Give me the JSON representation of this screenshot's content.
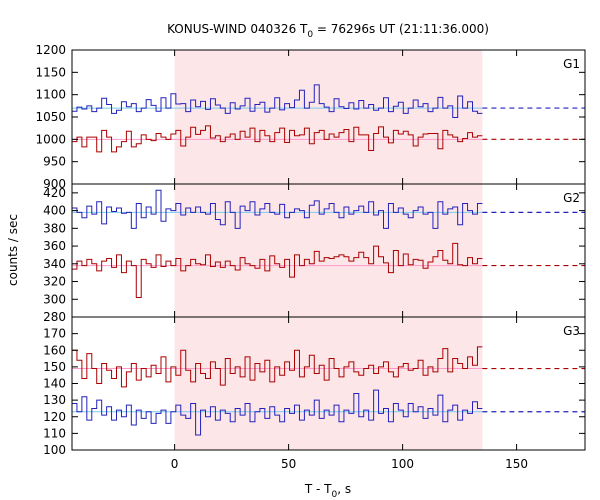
{
  "chart_data": {
    "type": "line",
    "title_pre": "KONUS-WIND 040326 T",
    "title_sub": "0",
    "title_post": " = 76296s UT (21:11:36.000)",
    "xlabel_pre": "T - T",
    "xlabel_sub": "0",
    "xlabel_post": ", s",
    "ylabel": "counts / sec",
    "xlim": [
      -45,
      180
    ],
    "x_ticks": [
      0,
      50,
      100,
      150
    ],
    "x_tick_labels": [
      "0",
      "50",
      "100",
      "150"
    ],
    "shaded_interval": [
      0,
      135
    ],
    "line_interval": [
      -45,
      135
    ],
    "dashed_interval": [
      135,
      180
    ],
    "colors": {
      "blue": "#2222bb",
      "red": "#aa0000",
      "blue_bg": "#77ccee",
      "red_bg": "#ff99cc",
      "shade": "#fde6e8"
    },
    "panels": [
      {
        "label": "G1",
        "ylim": [
          900,
          1200
        ],
        "y_ticks": [
          900,
          950,
          1000,
          1050,
          1100,
          1150,
          1200
        ],
        "y_tick_labels": [
          "900",
          "950",
          "1000",
          "1050",
          "1100",
          "1150",
          "1200"
        ],
        "series": [
          {
            "color": "blue",
            "background": 1070,
            "values": [
              1063,
              1072,
              1068,
              1075,
              1062,
              1070,
              1092,
              1078,
              1058,
              1065,
              1084,
              1073,
              1080,
              1062,
              1070,
              1089,
              1076,
              1063,
              1093,
              1070,
              1102,
              1079,
              1080,
              1062,
              1088,
              1073,
              1085,
              1067,
              1091,
              1077,
              1070,
              1058,
              1082,
              1068,
              1075,
              1092,
              1063,
              1078,
              1083,
              1061,
              1070,
              1093,
              1066,
              1080,
              1071,
              1088,
              1110,
              1070,
              1083,
              1122,
              1080,
              1072,
              1062,
              1091,
              1073,
              1069,
              1082,
              1068,
              1087,
              1070,
              1078,
              1065,
              1070,
              1093,
              1062,
              1074,
              1083,
              1058,
              1070,
              1088,
              1073,
              1080,
              1062,
              1070,
              1094,
              1070,
              1075,
              1049,
              1097,
              1070,
              1084,
              1063,
              1058
            ]
          },
          {
            "color": "red",
            "background": 1000,
            "values": [
              995,
              1005,
              983,
              1005,
              1005,
              972,
              1020,
              1005,
              972,
              983,
              995,
              1018,
              983,
              990,
              1010,
              1000,
              997,
              1013,
              1005,
              1000,
              1012,
              1020,
              985,
              1005,
              1027,
              1011,
              1020,
              1030,
              1003,
              1008,
              995,
              1005,
              1012,
              1000,
              1018,
              1005,
              1025,
              995,
              1020,
              1008,
              995,
              1015,
              1025,
              993,
              1020,
              1008,
              1010,
              1025,
              990,
              1015,
              1020,
              1000,
              1012,
              1005,
              1015,
              1022,
              995,
              1027,
              1010,
              1010,
              975,
              1013,
              1028,
              1005,
              992,
              1020,
              1012,
              1018,
              1010,
              985,
              1005,
              1012,
              1013,
              1013,
              979,
              1020,
              1010,
              1005,
              995,
              1002,
              1015,
              1005,
              1008
            ]
          }
        ]
      },
      {
        "label": "G2",
        "ylim": [
          280,
          430
        ],
        "y_ticks": [
          280,
          300,
          320,
          340,
          360,
          380,
          400,
          420
        ],
        "y_tick_labels": [
          "280",
          "300",
          "320",
          "340",
          "360",
          "380",
          "400",
          "420"
        ],
        "series": [
          {
            "color": "blue",
            "background": 398,
            "values": [
              403,
              398,
              392,
              405,
              396,
              410,
              385,
              404,
              399,
              403,
              397,
              398,
              380,
              408,
              392,
              404,
              396,
              423,
              388,
              402,
              400,
              408,
              395,
              403,
              398,
              404,
              398,
              396,
              408,
              390,
              384,
              410,
              398,
              380,
              405,
              400,
              410,
              395,
              402,
              408,
              398,
              396,
              407,
              392,
              398,
              402,
              400,
              392,
              406,
              411,
              396,
              402,
              408,
              398,
              392,
              404,
              396,
              400,
              405,
              398,
              410,
              395,
              400,
              380,
              408,
              398,
              403,
              396,
              392,
              400,
              404,
              396,
              398,
              380,
              410,
              396,
              402,
              404,
              384,
              408,
              400,
              396,
              408
            ]
          },
          {
            "color": "red",
            "background": 338,
            "values": [
              334,
              343,
              338,
              345,
              340,
              332,
              343,
              346,
              336,
              350,
              330,
              343,
              338,
              302,
              345,
              340,
              336,
              350,
              337,
              343,
              338,
              346,
              332,
              338,
              345,
              340,
              339,
              350,
              337,
              342,
              336,
              343,
              338,
              333,
              347,
              340,
              338,
              335,
              345,
              332,
              349,
              340,
              336,
              345,
              325,
              350,
              338,
              345,
              340,
              354,
              343,
              347,
              346,
              348,
              350,
              348,
              343,
              347,
              353,
              347,
              340,
              360,
              348,
              341,
              330,
              355,
              338,
              351,
              339,
              345,
              344,
              335,
              342,
              348,
              355,
              344,
              340,
              363,
              339,
              338,
              347,
              340,
              346
            ]
          }
        ]
      },
      {
        "label": "G3",
        "ylim": [
          100,
          180
        ],
        "y_ticks": [
          100,
          110,
          120,
          130,
          140,
          150,
          160,
          170
        ],
        "y_tick_labels": [
          "100",
          "110",
          "120",
          "130",
          "140",
          "150",
          "160",
          "170"
        ],
        "series": [
          {
            "color": "blue",
            "background": 123,
            "values": [
              128,
              123,
              132,
              118,
              125,
              130,
              121,
              126,
              118,
              124,
              120,
              127,
              115,
              124,
              119,
              123,
              116,
              122,
              124,
              116,
              123,
              127,
              121,
              119,
              128,
              109,
              124,
              120,
              126,
              118,
              124,
              122,
              117,
              125,
              121,
              128,
              117,
              123,
              125,
              119,
              126,
              121,
              117,
              125,
              122,
              127,
              118,
              124,
              121,
              130,
              119,
              124,
              121,
              127,
              117,
              124,
              122,
              134,
              120,
              124,
              118,
              136,
              122,
              125,
              117,
              128,
              124,
              120,
              128,
              123,
              126,
              119,
              125,
              121,
              133,
              117,
              124,
              127,
              118,
              124,
              122,
              129,
              125
            ]
          },
          {
            "color": "red",
            "background": 149,
            "values": [
              160,
              154,
              143,
              158,
              149,
              140,
              152,
              148,
              143,
              150,
              138,
              147,
              152,
              142,
              149,
              144,
              151,
              146,
              156,
              141,
              150,
              145,
              160,
              148,
              141,
              152,
              146,
              143,
              153,
              149,
              139,
              155,
              146,
              150,
              144,
              156,
              142,
              152,
              147,
              154,
              141,
              150,
              145,
              153,
              148,
              160,
              144,
              150,
              157,
              146,
              151,
              142,
              155,
              149,
              144,
              150,
              153,
              147,
              145,
              149,
              151,
              146,
              150,
              153,
              147,
              144,
              150,
              152,
              148,
              149,
              154,
              145,
              150,
              147,
              155,
              161,
              147,
              155,
              152,
              149,
              156,
              151,
              162
            ]
          }
        ]
      }
    ]
  }
}
